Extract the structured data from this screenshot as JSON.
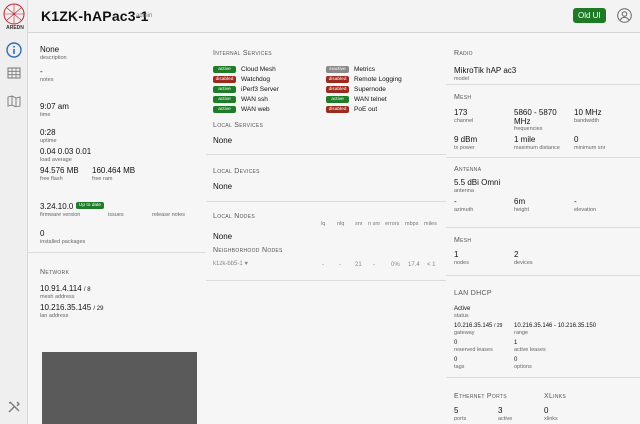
{
  "app": {
    "node_name": "K1ZK-hAPac3-1",
    "user": "admin",
    "old_ui": "Old UI",
    "logo_text": "AREDN"
  },
  "icons": {
    "logo": "aredn-logo-icon",
    "status": "info-icon",
    "mesh": "grid-icon",
    "map": "map-icon",
    "tools": "tools-icon",
    "user": "user-icon"
  },
  "col1": {
    "desc_v": "None",
    "desc_l": "description",
    "notes_v": "-",
    "notes_l": "notes",
    "time_v": "9:07 am",
    "time_l": "time",
    "uptime_v": "0:28",
    "uptime_l": "uptime",
    "load_v": "0.04  0.03  0.01",
    "load_l": "load average",
    "flash_v": "94.576 MB",
    "flash_l": "free flash",
    "ram_v": "160.464 MB",
    "ram_l": "free ram",
    "fw_v": "3.24.10.0",
    "fw_badge": "Up to date",
    "fw_l": "firmware version",
    "issues_l": "issues",
    "notes2_l": "release notes",
    "pkg_v": "0",
    "pkg_l": "installed packages",
    "network_h": "Network",
    "mesh_addr_v": "10.91.4.114",
    "mesh_addr_m": "/ 8",
    "mesh_addr_l": "mesh address",
    "lan_addr_v": "10.216.35.145",
    "lan_addr_m": "/ 29",
    "lan_addr_l": "lan address"
  },
  "col2": {
    "svc_h": "Internal Services",
    "services": [
      {
        "status": "active",
        "name": "Cloud Mesh"
      },
      {
        "status": "disabled",
        "name": "Watchdog"
      },
      {
        "status": "active",
        "name": "iPerf3 Server"
      },
      {
        "status": "active",
        "name": "WAN ssh"
      },
      {
        "status": "active",
        "name": "WAN web"
      },
      {
        "status": "inactive",
        "name": "Metrics"
      },
      {
        "status": "disabled",
        "name": "Remote Logging"
      },
      {
        "status": "disabled",
        "name": "Supernode"
      },
      {
        "status": "active",
        "name": "WAN telnet"
      },
      {
        "status": "disabled",
        "name": "PoE out"
      }
    ],
    "local_svc_h": "Local Services",
    "local_svc_v": "None",
    "local_dev_h": "Local Devices",
    "local_dev_v": "None",
    "local_nodes_h": "Local Nodes",
    "local_nodes_v": "None",
    "cols": [
      "lq",
      "nlq",
      "snr",
      "n snr",
      "errors",
      "mbps",
      "miles"
    ],
    "nbr_h": "Neighborhood Nodes",
    "nbr": {
      "name": "k1zk-bb5-1",
      "vals": [
        "-",
        "-",
        "21",
        "-",
        "0%",
        "17.4",
        "< 1"
      ]
    }
  },
  "col3": {
    "radio_h": "Radio",
    "model_v": "MikroTik hAP ac3",
    "model_l": "model",
    "mesh_h": "Mesh",
    "ch_v": "173",
    "ch_l": "channel",
    "freq_v": "5860 - 5870 MHz",
    "freq_l": "frequencies",
    "bw_v": "10 MHz",
    "bw_l": "bandwidth",
    "txp_v": "9 dBm",
    "txp_l": "tx power",
    "dist_v": "1 mile",
    "dist_l": "maximum distance",
    "snr_v": "0",
    "snr_l": "minimum snr",
    "ant_h": "Antenna",
    "ant_v": "5.5 dBi Omni",
    "ant_l": "antenna",
    "az_v": "-",
    "az_l": "azimuth",
    "ht_v": "6m",
    "ht_l": "height",
    "el_v": "-",
    "el_l": "elevation",
    "mesh2_h": "Mesh",
    "nodes_v": "1",
    "nodes_l": "nodes",
    "devices_v": "2",
    "devices_l": "devices",
    "dhcp_h": "LAN DHCP",
    "dhcp_status_v": "Active",
    "dhcp_status_l": "status",
    "gw_v": "10.216.35.145",
    "gw_m": "/ 29",
    "gw_l": "gateway",
    "range_v": "10.216.35.146 - 10.216.35.150",
    "range_l": "range",
    "res_v": "0",
    "res_l": "reserved leases",
    "act_v": "1",
    "act_l": "active leases",
    "tags_v": "0",
    "tags_l": "tags",
    "opt_v": "0",
    "opt_l": "options",
    "eth_h": "Ethernet Ports",
    "ports_v": "5",
    "ports_l": "ports",
    "active_v": "3",
    "active_l": "active",
    "xl_h": "XLinks",
    "xl_v": "0",
    "xl_l": "xlinks"
  }
}
